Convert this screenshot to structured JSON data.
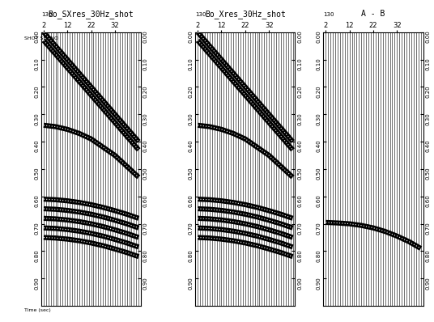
{
  "chart_data": [
    {
      "type": "wiggle",
      "title": "Bo_SXres_30Hz_shot",
      "shot": 130,
      "shot_label": "SHOT SEQNO",
      "y_label": "Time (sec)",
      "xlim": [
        1,
        43
      ],
      "xticks": [
        2,
        12,
        22,
        32
      ],
      "ylim": [
        0,
        1.0
      ],
      "yticks": [
        {
          "value": 0.0,
          "label": "0.00"
        },
        {
          "value": 0.1,
          "label": "0.10"
        },
        {
          "value": 0.2,
          "label": "0.20"
        },
        {
          "value": 0.3,
          "label": "0.30"
        },
        {
          "value": 0.4,
          "label": "0.40"
        },
        {
          "value": 0.5,
          "label": "0.50"
        },
        {
          "value": 0.6,
          "label": "0.60"
        },
        {
          "value": 0.7,
          "label": "0.70"
        },
        {
          "value": 0.8,
          "label": "0.80"
        },
        {
          "value": 0.9,
          "label": "0.90"
        }
      ],
      "traces": [
        2,
        3,
        4,
        5,
        6,
        7,
        8,
        9,
        10,
        11,
        12,
        13,
        14,
        15,
        16,
        17,
        18,
        19,
        20,
        21,
        22,
        23,
        24,
        25,
        26,
        27,
        28,
        29,
        30,
        31,
        32,
        33,
        34,
        35,
        36,
        37,
        38,
        39,
        40,
        41,
        42
      ],
      "x": [
        2,
        7,
        12,
        17,
        22,
        27,
        32,
        37,
        42
      ],
      "series": [
        {
          "values": [
            0.0,
            0.05,
            0.1,
            0.15,
            0.2,
            0.25,
            0.3,
            0.35,
            0.4
          ]
        },
        {
          "values": [
            0.03,
            0.08,
            0.13,
            0.18,
            0.23,
            0.28,
            0.33,
            0.38,
            0.43
          ]
        },
        {
          "values": [
            0.34,
            0.345,
            0.355,
            0.37,
            0.39,
            0.42,
            0.45,
            0.49,
            0.53
          ]
        },
        {
          "values": [
            0.61,
            0.612,
            0.616,
            0.622,
            0.63,
            0.64,
            0.652,
            0.665,
            0.68
          ]
        },
        {
          "values": [
            0.645,
            0.647,
            0.651,
            0.657,
            0.665,
            0.675,
            0.687,
            0.7,
            0.715
          ]
        },
        {
          "values": [
            0.68,
            0.682,
            0.686,
            0.692,
            0.7,
            0.71,
            0.722,
            0.735,
            0.75
          ]
        },
        {
          "values": [
            0.715,
            0.717,
            0.721,
            0.727,
            0.735,
            0.745,
            0.757,
            0.77,
            0.785
          ]
        },
        {
          "values": [
            0.75,
            0.752,
            0.756,
            0.762,
            0.77,
            0.78,
            0.792,
            0.805,
            0.82
          ]
        }
      ]
    },
    {
      "type": "wiggle",
      "title": "Bo_Xres_30Hz_shot",
      "shot": 130,
      "xlim": [
        1,
        43
      ],
      "xticks": [
        2,
        12,
        22,
        32
      ],
      "ylim": [
        0,
        1.0
      ],
      "yticks": [
        {
          "value": 0.0,
          "label": "0.00"
        },
        {
          "value": 0.1,
          "label": "0.10"
        },
        {
          "value": 0.2,
          "label": "0.20"
        },
        {
          "value": 0.3,
          "label": "0.30"
        },
        {
          "value": 0.4,
          "label": "0.40"
        },
        {
          "value": 0.5,
          "label": "0.50"
        },
        {
          "value": 0.6,
          "label": "0.60"
        },
        {
          "value": 0.7,
          "label": "0.70"
        },
        {
          "value": 0.8,
          "label": "0.80"
        },
        {
          "value": 0.9,
          "label": "0.90"
        }
      ],
      "traces": [
        2,
        3,
        4,
        5,
        6,
        7,
        8,
        9,
        10,
        11,
        12,
        13,
        14,
        15,
        16,
        17,
        18,
        19,
        20,
        21,
        22,
        23,
        24,
        25,
        26,
        27,
        28,
        29,
        30,
        31,
        32,
        33,
        34,
        35,
        36,
        37,
        38,
        39,
        40,
        41,
        42
      ],
      "x": [
        2,
        7,
        12,
        17,
        22,
        27,
        32,
        37,
        42
      ],
      "series": [
        {
          "values": [
            0.0,
            0.05,
            0.1,
            0.15,
            0.2,
            0.25,
            0.3,
            0.35,
            0.4
          ]
        },
        {
          "values": [
            0.03,
            0.08,
            0.13,
            0.18,
            0.23,
            0.28,
            0.33,
            0.38,
            0.43
          ]
        },
        {
          "values": [
            0.34,
            0.345,
            0.355,
            0.37,
            0.39,
            0.42,
            0.45,
            0.49,
            0.53
          ]
        },
        {
          "values": [
            0.61,
            0.612,
            0.616,
            0.622,
            0.63,
            0.64,
            0.652,
            0.665,
            0.68
          ]
        },
        {
          "values": [
            0.645,
            0.647,
            0.651,
            0.657,
            0.665,
            0.675,
            0.687,
            0.7,
            0.715
          ]
        },
        {
          "values": [
            0.68,
            0.682,
            0.686,
            0.692,
            0.7,
            0.71,
            0.722,
            0.735,
            0.75
          ]
        },
        {
          "values": [
            0.715,
            0.717,
            0.721,
            0.727,
            0.735,
            0.745,
            0.757,
            0.77,
            0.785
          ]
        },
        {
          "values": [
            0.75,
            0.752,
            0.756,
            0.762,
            0.77,
            0.78,
            0.792,
            0.805,
            0.82
          ]
        }
      ]
    },
    {
      "type": "wiggle",
      "title": "A - B",
      "shot": 130,
      "xlim": [
        1,
        43
      ],
      "xticks": [
        2,
        12,
        22,
        32
      ],
      "ylim": [
        0,
        1.0
      ],
      "yticks": [
        {
          "value": 0.0,
          "label": "0.00"
        },
        {
          "value": 0.1,
          "label": "0.10"
        },
        {
          "value": 0.2,
          "label": "0.20"
        },
        {
          "value": 0.3,
          "label": "0.30"
        },
        {
          "value": 0.4,
          "label": "0.40"
        },
        {
          "value": 0.5,
          "label": "0.50"
        },
        {
          "value": 0.6,
          "label": "0.60"
        },
        {
          "value": 0.7,
          "label": "0.70"
        },
        {
          "value": 0.8,
          "label": "0.80"
        },
        {
          "value": 0.9,
          "label": "0.90"
        }
      ],
      "traces": [
        2,
        3,
        4,
        5,
        6,
        7,
        8,
        9,
        10,
        11,
        12,
        13,
        14,
        15,
        16,
        17,
        18,
        19,
        20,
        21,
        22,
        23,
        24,
        25,
        26,
        27,
        28,
        29,
        30,
        31,
        32,
        33,
        34,
        35,
        36,
        37,
        38,
        39,
        40,
        41,
        42
      ],
      "x": [
        2,
        7,
        12,
        17,
        22,
        27,
        32,
        37,
        42
      ],
      "series": [
        {
          "values": [
            0.695,
            0.697,
            0.7,
            0.706,
            0.715,
            0.728,
            0.745,
            0.765,
            0.79
          ]
        }
      ]
    }
  ]
}
